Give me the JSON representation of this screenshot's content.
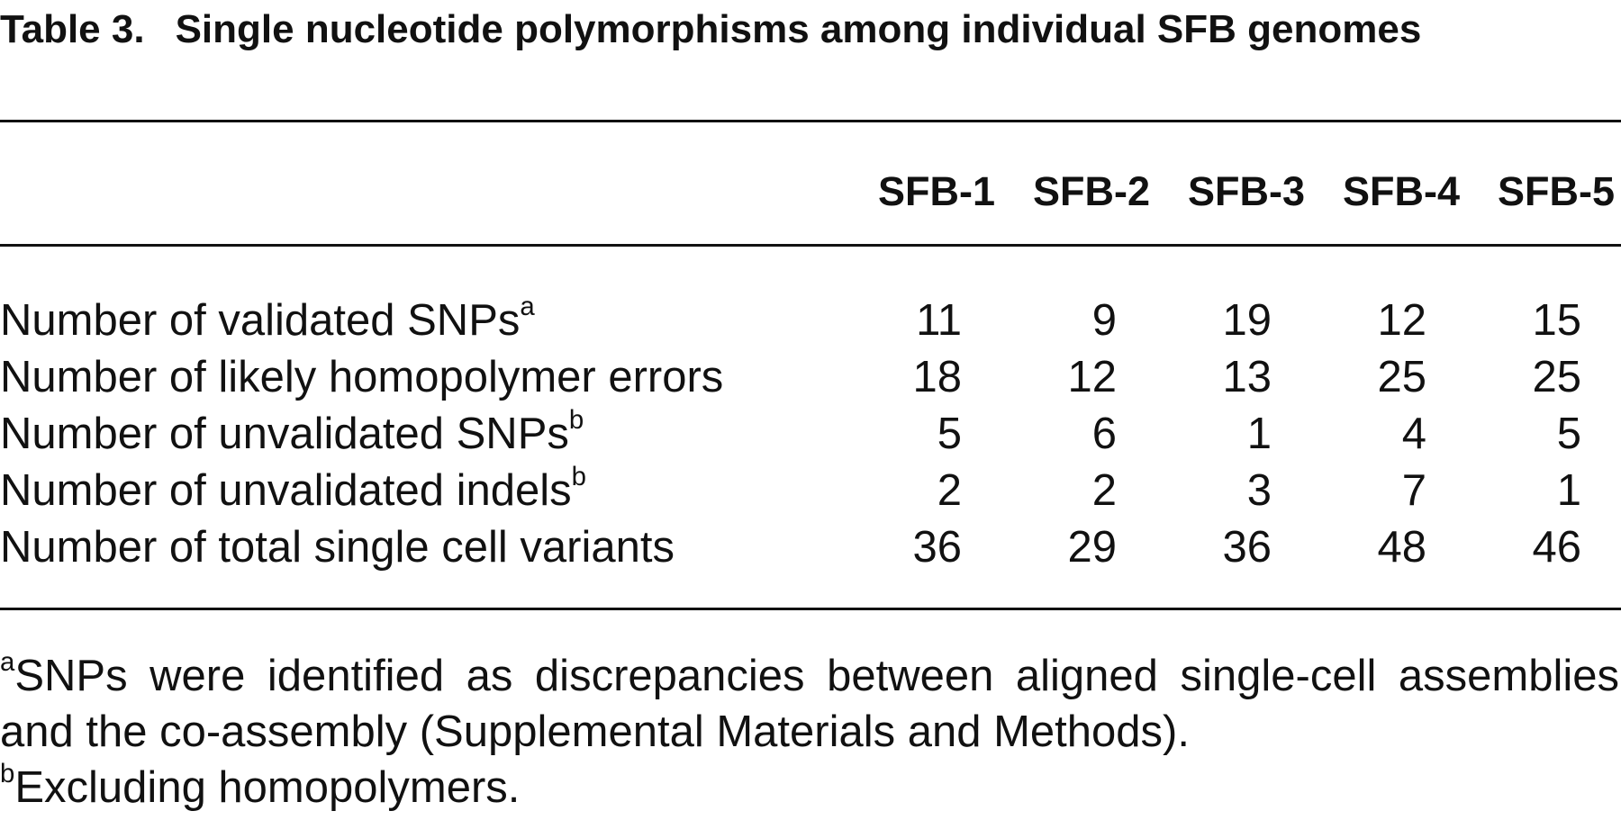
{
  "title": {
    "label": "Table 3.",
    "text": "Single nucleotide polymorphisms among individual SFB genomes"
  },
  "table": {
    "columns": [
      "SFB-1",
      "SFB-2",
      "SFB-3",
      "SFB-4",
      "SFB-5"
    ],
    "rows": [
      {
        "label": "Number of validated SNPs",
        "note": "a",
        "values": [
          11,
          9,
          19,
          12,
          15
        ]
      },
      {
        "label": "Number of likely homopolymer errors",
        "values": [
          18,
          12,
          13,
          25,
          25
        ]
      },
      {
        "label": "Number of unvalidated SNPs",
        "note": "b",
        "values": [
          5,
          6,
          1,
          4,
          5
        ]
      },
      {
        "label": "Number of unvalidated indels",
        "note": "b",
        "values": [
          2,
          2,
          3,
          7,
          1
        ]
      },
      {
        "label": "Number of total single cell variants",
        "values": [
          36,
          29,
          36,
          48,
          46
        ]
      }
    ]
  },
  "footnotes": [
    {
      "mark": "a",
      "text": "SNPs were identified as discrepancies between aligned single-cell assemblies and the co-assembly (Supplemental Materials and Methods)."
    },
    {
      "mark": "b",
      "text": "Excluding homopolymers."
    }
  ]
}
